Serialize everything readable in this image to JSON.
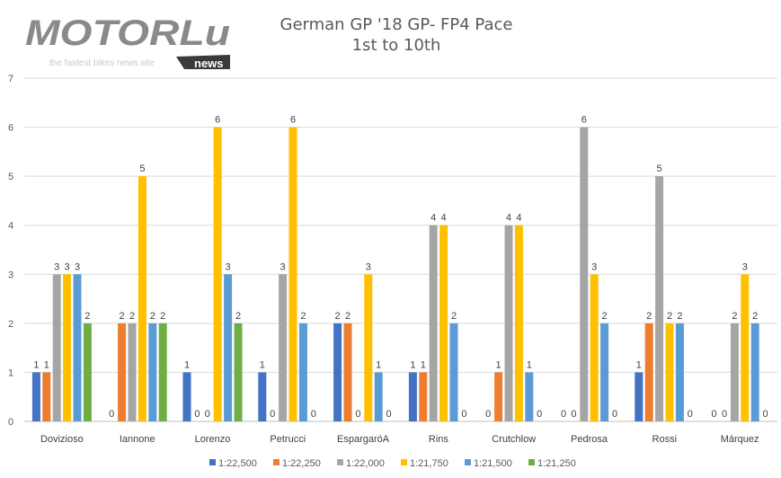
{
  "logo": {
    "brand": "MOTORLu",
    "badge": "news",
    "tagline": "the fastest bikes news site"
  },
  "chart_data": {
    "type": "bar",
    "title": "German GP '18 GP- FP4 Pace",
    "subtitle": "1st to 10th",
    "xlabel": "",
    "ylabel": "",
    "ylim": [
      0,
      7
    ],
    "yticks": [
      0,
      1,
      2,
      3,
      4,
      5,
      6,
      7
    ],
    "grid": true,
    "legend_position": "bottom",
    "categories": [
      "Dovizioso",
      "Iannone",
      "Lorenzo",
      "Petrucci",
      "EspargaróA",
      "Rins",
      "Crutchlow",
      "Pedrosa",
      "Rossi",
      "Márquez"
    ],
    "series": [
      {
        "name": "1:22,500",
        "color": "#4472C4",
        "values": [
          1,
          0,
          1,
          1,
          2,
          1,
          0,
          0,
          1,
          0
        ]
      },
      {
        "name": "1:22,250",
        "color": "#ED7D31",
        "values": [
          1,
          2,
          0,
          0,
          2,
          1,
          1,
          0,
          2,
          0
        ]
      },
      {
        "name": "1:22,000",
        "color": "#A5A5A5",
        "values": [
          3,
          2,
          0,
          3,
          0,
          4,
          4,
          6,
          5,
          2
        ]
      },
      {
        "name": "1:21,750",
        "color": "#FFC000",
        "values": [
          3,
          5,
          6,
          6,
          3,
          4,
          4,
          3,
          2,
          3
        ]
      },
      {
        "name": "1:21,500",
        "color": "#5B9BD5",
        "values": [
          3,
          2,
          3,
          2,
          1,
          2,
          1,
          2,
          2,
          2
        ]
      },
      {
        "name": "1:21,250",
        "color": "#70AD47",
        "values": [
          2,
          2,
          2,
          0,
          0,
          0,
          0,
          0,
          0,
          0
        ]
      }
    ]
  }
}
